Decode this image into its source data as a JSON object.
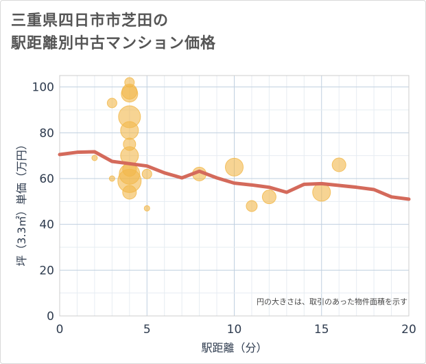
{
  "title": {
    "line1": "三重県四日市市芝田の",
    "line2": "駅距離別中古マンション価格"
  },
  "colors": {
    "bubble": "#f2b84b",
    "line": "#d46a5b",
    "grid_major": "#bfcfdf",
    "grid_minor": "#e6ecf2",
    "axis_text": "#2e3b4e",
    "plot_border": "#cccccc"
  },
  "chart_data": {
    "type": "scatter",
    "xlabel": "駅距離（分）",
    "ylabel": "坪（3.3㎡）単価（万円）",
    "xlim": [
      0,
      20
    ],
    "ylim": [
      0,
      105
    ],
    "xticks": [
      0,
      5,
      10,
      15,
      20
    ],
    "yticks": [
      0,
      20,
      40,
      60,
      80,
      100
    ],
    "grid": true,
    "annotation": "円の大きさは、取引のあった物件面積を示す",
    "bubbles": [
      {
        "x": 4,
        "y": 102,
        "size": 7
      },
      {
        "x": 4,
        "y": 98,
        "size": 11
      },
      {
        "x": 4,
        "y": 97,
        "size": 12
      },
      {
        "x": 3,
        "y": 93,
        "size": 7
      },
      {
        "x": 4,
        "y": 87,
        "size": 16
      },
      {
        "x": 4,
        "y": 81,
        "size": 13
      },
      {
        "x": 4,
        "y": 75,
        "size": 9
      },
      {
        "x": 4,
        "y": 70,
        "size": 13
      },
      {
        "x": 2,
        "y": 69,
        "size": 4
      },
      {
        "x": 4,
        "y": 64,
        "size": 10
      },
      {
        "x": 4,
        "y": 62,
        "size": 15
      },
      {
        "x": 5,
        "y": 62,
        "size": 7
      },
      {
        "x": 3,
        "y": 60,
        "size": 4
      },
      {
        "x": 4,
        "y": 59,
        "size": 17
      },
      {
        "x": 4,
        "y": 54,
        "size": 10
      },
      {
        "x": 5,
        "y": 47,
        "size": 4
      },
      {
        "x": 8,
        "y": 62,
        "size": 10
      },
      {
        "x": 10,
        "y": 65,
        "size": 13
      },
      {
        "x": 11,
        "y": 48,
        "size": 8
      },
      {
        "x": 12,
        "y": 52,
        "size": 10
      },
      {
        "x": 15,
        "y": 54,
        "size": 13
      },
      {
        "x": 16,
        "y": 66,
        "size": 10
      }
    ],
    "series": [
      {
        "x": [
          0,
          1,
          2,
          3,
          4,
          5,
          6,
          7,
          8,
          9,
          10,
          11,
          12,
          13,
          14,
          15,
          16,
          17,
          18,
          19,
          20
        ],
        "values": [
          70.5,
          71.5,
          71.7,
          67.5,
          66.5,
          65.5,
          62.5,
          60.3,
          63.2,
          60.3,
          58.0,
          57.2,
          56.2,
          54.0,
          57.5,
          57.8,
          57.0,
          56.2,
          55.2,
          52.0,
          51.0
        ]
      }
    ]
  }
}
